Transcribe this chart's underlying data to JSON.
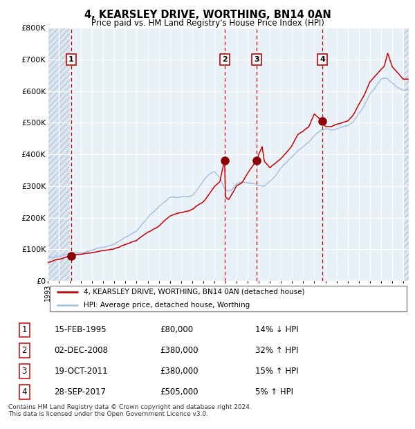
{
  "title": "4, KEARSLEY DRIVE, WORTHING, BN14 0AN",
  "subtitle": "Price paid vs. HM Land Registry's House Price Index (HPI)",
  "ylim": [
    0,
    800000
  ],
  "yticks": [
    0,
    100000,
    200000,
    300000,
    400000,
    500000,
    600000,
    700000,
    800000
  ],
  "ytick_labels": [
    "£0",
    "£100K",
    "£200K",
    "£300K",
    "£400K",
    "£500K",
    "£600K",
    "£700K",
    "£800K"
  ],
  "hpi_color": "#a8c4e0",
  "price_color": "#cc0000",
  "purchase_dates": [
    1995.12,
    2008.92,
    2011.8,
    2017.74
  ],
  "purchase_prices": [
    80000,
    380000,
    380000,
    505000
  ],
  "purchase_labels": [
    "1",
    "2",
    "3",
    "4"
  ],
  "vline_color": "#cc0000",
  "marker_color": "#8b0000",
  "table_rows": [
    [
      "1",
      "15-FEB-1995",
      "£80,000",
      "14% ↓ HPI"
    ],
    [
      "2",
      "02-DEC-2008",
      "£380,000",
      "32% ↑ HPI"
    ],
    [
      "3",
      "19-OCT-2011",
      "£380,000",
      "15% ↑ HPI"
    ],
    [
      "4",
      "28-SEP-2017",
      "£505,000",
      "5% ↑ HPI"
    ]
  ],
  "legend_label_red": "4, KEARSLEY DRIVE, WORTHING, BN14 0AN (detached house)",
  "legend_label_blue": "HPI: Average price, detached house, Worthing",
  "footnote": "Contains HM Land Registry data © Crown copyright and database right 2024.\nThis data is licensed under the Open Government Licence v3.0.",
  "bg_color": "#e8f0f8",
  "grid_color": "#ffffff",
  "xmin": 1993.0,
  "xmax": 2025.5,
  "hpi_anchors_years": [
    1993.0,
    1994.0,
    1995.12,
    1996.0,
    1997.0,
    1998.0,
    1999.0,
    2000.0,
    2001.0,
    2002.0,
    2002.5,
    2003.5,
    2004.0,
    2005.0,
    2005.5,
    2006.0,
    2007.0,
    2007.5,
    2008.0,
    2008.5,
    2009.0,
    2009.5,
    2010.0,
    2010.5,
    2011.0,
    2011.5,
    2012.0,
    2012.5,
    2013.0,
    2013.5,
    2014.0,
    2015.0,
    2015.5,
    2016.0,
    2016.5,
    2017.0,
    2017.74,
    2018.0,
    2018.5,
    2019.0,
    2020.0,
    2020.5,
    2021.0,
    2021.5,
    2022.0,
    2022.5,
    2023.0,
    2023.5,
    2024.0,
    2024.5,
    2025.0
  ],
  "hpi_anchors_vals": [
    72000,
    78000,
    90000,
    92000,
    100000,
    108000,
    118000,
    140000,
    160000,
    200000,
    218000,
    250000,
    265000,
    268000,
    268000,
    275000,
    320000,
    340000,
    350000,
    330000,
    290000,
    290000,
    310000,
    315000,
    310000,
    308000,
    302000,
    300000,
    315000,
    330000,
    355000,
    390000,
    410000,
    425000,
    440000,
    460000,
    478000,
    480000,
    478000,
    480000,
    490000,
    500000,
    530000,
    555000,
    590000,
    610000,
    635000,
    640000,
    622000,
    608000,
    600000
  ],
  "price_anchors_years": [
    1993.0,
    1994.0,
    1995.12,
    1996.0,
    1997.0,
    1998.0,
    1999.0,
    2000.0,
    2001.0,
    2002.0,
    2003.0,
    2004.0,
    2005.0,
    2006.0,
    2007.0,
    2007.5,
    2008.0,
    2008.5,
    2008.92,
    2009.0,
    2009.3,
    2009.8,
    2010.0,
    2010.5,
    2011.0,
    2011.8,
    2012.0,
    2012.3,
    2012.5,
    2013.0,
    2013.5,
    2014.0,
    2015.0,
    2015.5,
    2016.0,
    2016.5,
    2017.0,
    2017.74,
    2018.0,
    2018.5,
    2019.0,
    2020.0,
    2020.5,
    2021.0,
    2021.5,
    2022.0,
    2022.5,
    2023.0,
    2023.3,
    2023.6,
    2024.0,
    2024.5,
    2025.0
  ],
  "price_anchors_vals": [
    58000,
    68000,
    80000,
    82000,
    88000,
    95000,
    100000,
    115000,
    128000,
    155000,
    175000,
    205000,
    215000,
    225000,
    250000,
    270000,
    295000,
    310000,
    380000,
    260000,
    255000,
    285000,
    300000,
    310000,
    340000,
    380000,
    400000,
    425000,
    380000,
    360000,
    375000,
    390000,
    430000,
    465000,
    475000,
    490000,
    530000,
    505000,
    490000,
    488000,
    495000,
    505000,
    525000,
    560000,
    590000,
    630000,
    650000,
    670000,
    680000,
    720000,
    680000,
    660000,
    640000
  ]
}
